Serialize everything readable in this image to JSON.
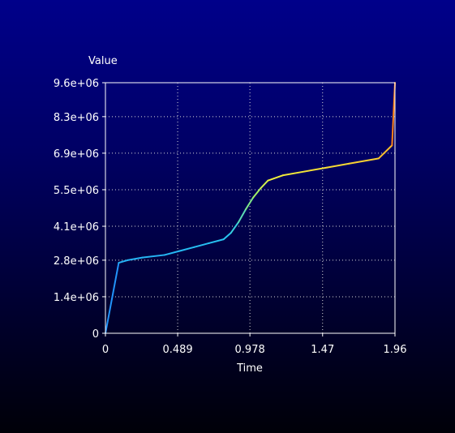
{
  "chart_data": {
    "type": "line",
    "ylabel": "Value",
    "xlabel": "Time",
    "xlim": [
      0,
      1.96
    ],
    "ylim": [
      0,
      9600000
    ],
    "x_ticks": [
      0,
      0.489,
      0.978,
      1.47,
      1.96
    ],
    "x_tick_labels": [
      "0",
      "0.489",
      "0.978",
      "1.47",
      "1.96"
    ],
    "y_ticks": [
      0,
      1400000,
      2800000,
      4100000,
      5500000,
      6900000,
      8300000,
      9600000
    ],
    "y_tick_labels": [
      "0",
      "1.4e+06",
      "2.8e+06",
      "4.1e+06",
      "5.5e+06",
      "6.9e+06",
      "8.3e+06",
      "9.6e+06"
    ],
    "grid": true,
    "color_scale": "value-mapped rainbow (blue low to red high)",
    "series": [
      {
        "x": [
          0,
          0.09,
          0.15,
          0.25,
          0.4,
          0.5,
          0.6,
          0.7,
          0.8,
          0.85,
          0.9,
          0.95,
          1.0,
          1.05,
          1.1,
          1.2,
          1.35,
          1.5,
          1.65,
          1.85,
          1.94,
          1.96
        ],
        "y": [
          0,
          2700000,
          2800000,
          2900000,
          3000000,
          3150000,
          3300000,
          3450000,
          3600000,
          3850000,
          4250000,
          4750000,
          5200000,
          5550000,
          5850000,
          6050000,
          6200000,
          6350000,
          6500000,
          6700000,
          7200000,
          9600000
        ]
      }
    ],
    "colors": {
      "axes": "#ffffff",
      "grid": "#d8d8d8",
      "background_top": "#00008a",
      "background_bottom": "#000008"
    }
  }
}
